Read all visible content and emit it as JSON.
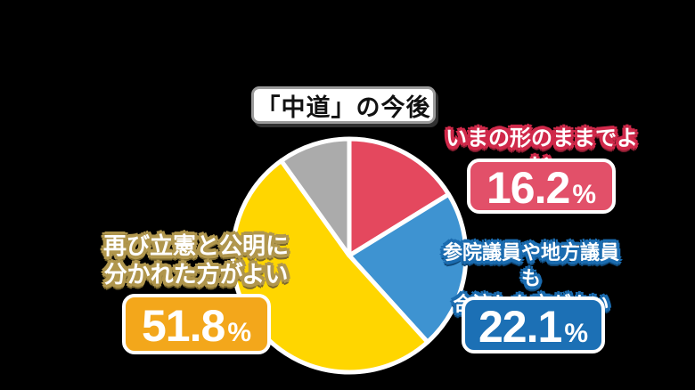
{
  "title": {
    "text": "「中道」の今後"
  },
  "chart_data": {
    "type": "pie",
    "title": "「中道」の今後",
    "unit": "%",
    "start_angle": "top",
    "direction": "clockwise",
    "slices": [
      {
        "label": "いまの形のままでよい",
        "value": 16.2,
        "color": "#e4485e"
      },
      {
        "label": "参院議員や地方議員も合流した方がよい",
        "value": 22.1,
        "color": "#3e93d1"
      },
      {
        "label": "再び立憲と公明に分かれた方がよい",
        "value": 51.8,
        "color": "#ffd600"
      },
      {
        "label": "",
        "value": 9.9,
        "color": "#ababab"
      }
    ]
  },
  "callouts": {
    "red": {
      "lines": [
        "いまの形のままでよい",
        ""
      ],
      "value": "16.2",
      "unit": "%"
    },
    "blue": {
      "lines": [
        "参院議員や地方議員も",
        "合流した方がよい"
      ],
      "value": "22.1",
      "unit": "%"
    },
    "yellow": {
      "lines": [
        "再び立憲と公明に",
        "分かれた方がよい"
      ],
      "value": "51.8",
      "unit": "%"
    }
  },
  "colors": {
    "background": "#000000",
    "title_bg": "#ffffff",
    "title_border": "#9b9b9b",
    "title_text": "#111111",
    "box_border": "#ffffff",
    "box_text": "#ffffff",
    "red_box": "#e25069",
    "red_outline": "#d0294a",
    "red_shadow": "#8d1f33",
    "blue_box": "#1c70b5",
    "blue_outline": "#1b6cb0",
    "blue_shadow": "#0f4878",
    "yellow_box": "#f3a71b",
    "yellow_outline": "#b0964d",
    "yellow_shadow": "#79662c"
  }
}
